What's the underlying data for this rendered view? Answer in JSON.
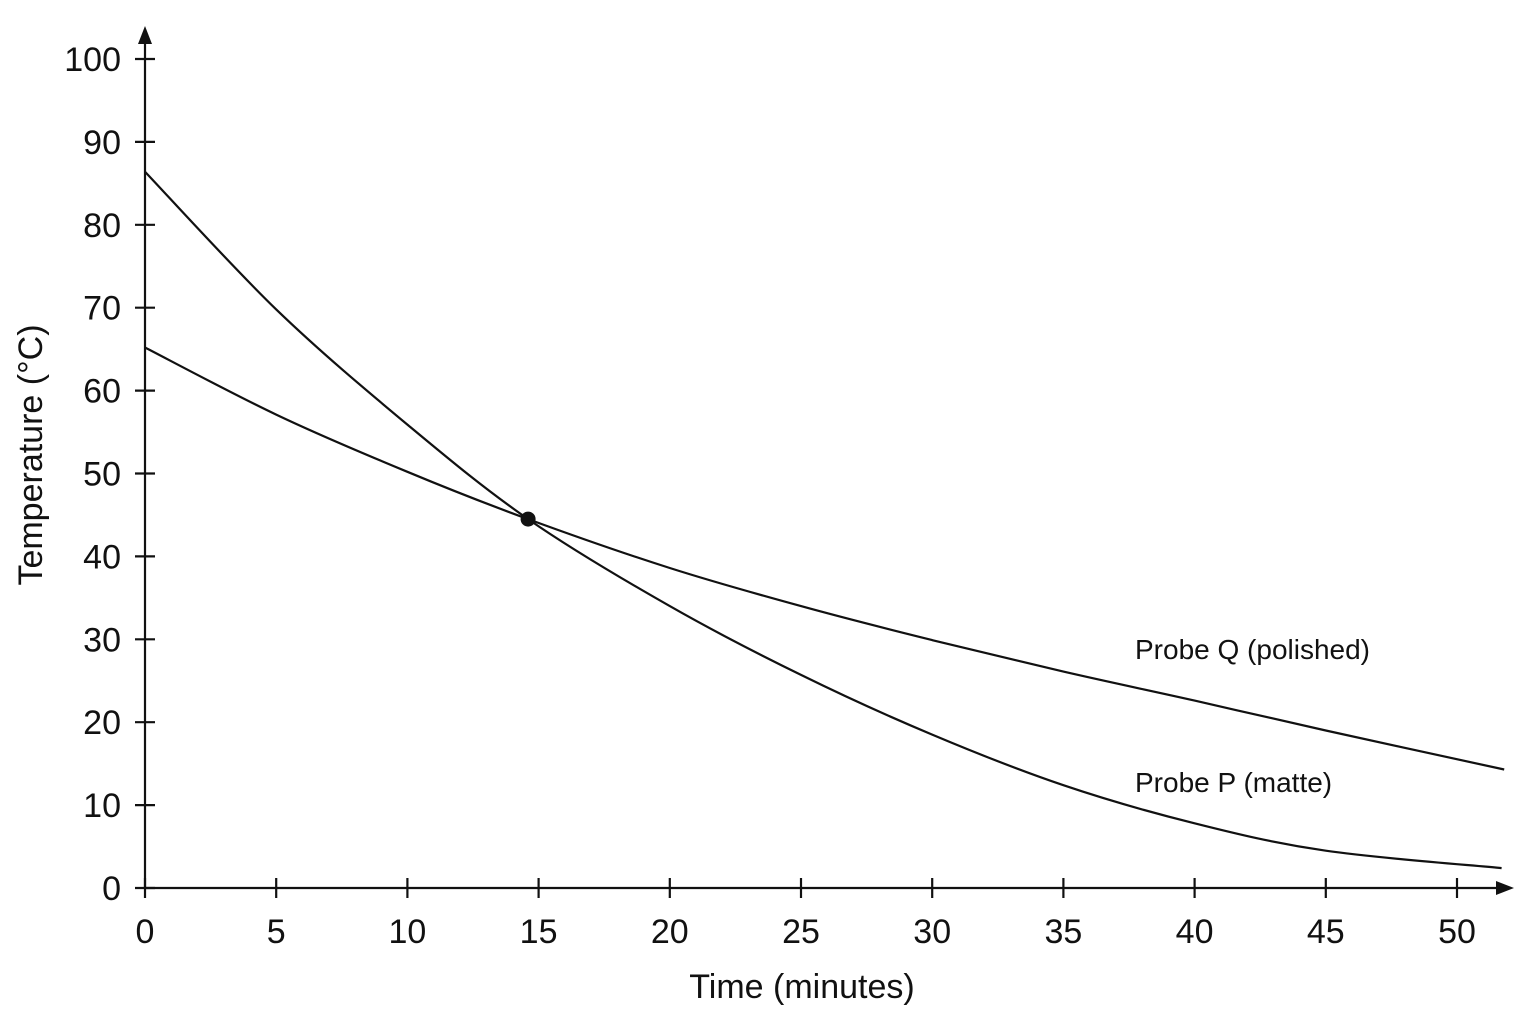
{
  "chart_data": {
    "type": "line",
    "title": "",
    "xlabel": "Time (minutes)",
    "ylabel": "Temperature (°C)",
    "xlim": [
      0,
      52
    ],
    "ylim": [
      0,
      100
    ],
    "x_ticks": [
      0,
      5,
      10,
      15,
      20,
      25,
      30,
      35,
      40,
      45,
      50
    ],
    "y_ticks": [
      0,
      10,
      20,
      30,
      40,
      50,
      60,
      70,
      80,
      90,
      100
    ],
    "grid": false,
    "series": [
      {
        "name": "Probe Q (polished)",
        "x": [
          0,
          5,
          10,
          14.6,
          20,
          25,
          30,
          35,
          40,
          45,
          51.8
        ],
        "y": [
          65.2,
          57.1,
          50.2,
          44.5,
          38.6,
          34.0,
          29.9,
          26.1,
          22.6,
          19.0,
          14.3
        ]
      },
      {
        "name": "Probe P (matte)",
        "x": [
          0,
          5,
          10,
          14.6,
          20,
          25,
          30,
          35,
          40,
          45,
          51.7
        ],
        "y": [
          86.4,
          69.8,
          55.9,
          44.5,
          34.0,
          25.7,
          18.5,
          12.4,
          7.8,
          4.5,
          2.4
        ]
      }
    ],
    "markers": [
      {
        "x": 14.6,
        "y": 44.5
      }
    ]
  }
}
